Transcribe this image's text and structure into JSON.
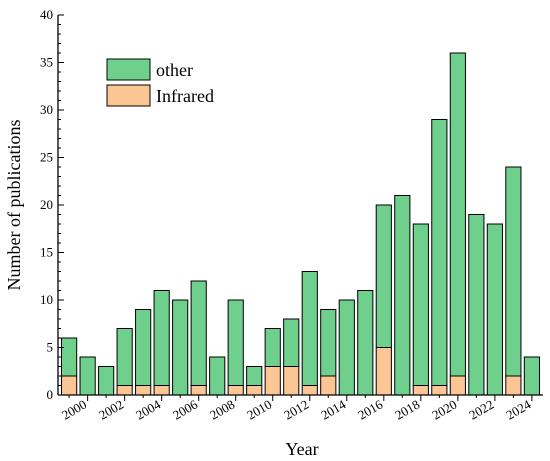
{
  "chart_data": {
    "type": "bar",
    "stacked": true,
    "x": [
      1999,
      2000,
      2001,
      2002,
      2003,
      2004,
      2005,
      2006,
      2007,
      2008,
      2009,
      2010,
      2011,
      2012,
      2013,
      2014,
      2015,
      2016,
      2017,
      2018,
      2019,
      2020,
      2021,
      2022,
      2023,
      2024
    ],
    "series": [
      {
        "name": "Infrared",
        "color": "#fcc594",
        "values": [
          2,
          0,
          0,
          1,
          1,
          1,
          0,
          1,
          0,
          1,
          1,
          3,
          3,
          1,
          2,
          0,
          0,
          5,
          0,
          1,
          1,
          2,
          0,
          0,
          2,
          0
        ]
      },
      {
        "name": "other",
        "color": "#6fd08e",
        "values": [
          4,
          4,
          3,
          6,
          8,
          10,
          10,
          11,
          4,
          9,
          2,
          4,
          5,
          12,
          7,
          10,
          11,
          15,
          21,
          17,
          28,
          34,
          19,
          18,
          22,
          4
        ]
      }
    ],
    "xlabel": "Year",
    "ylabel": "Number of publications",
    "ylim": [
      0,
      40
    ],
    "yticks": [
      "0",
      "5",
      "10",
      "15",
      "20",
      "25",
      "30",
      "35",
      "40"
    ],
    "xticks": [
      "2000",
      "2002",
      "2004",
      "2006",
      "2008",
      "2010",
      "2012",
      "2014",
      "2016",
      "2018",
      "2020",
      "2022",
      "2024"
    ],
    "legend": {
      "position": "top-left",
      "entries": [
        "other",
        "Infrared"
      ]
    },
    "grid": false
  }
}
